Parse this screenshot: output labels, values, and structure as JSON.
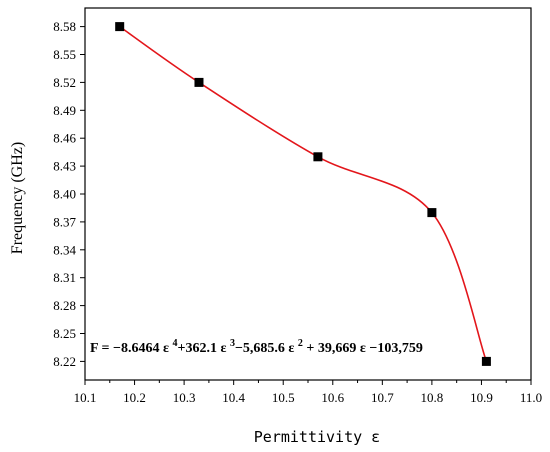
{
  "chart_data": {
    "type": "scatter",
    "xlabel": "Permittivity ε",
    "ylabel": "Frequency (GHz)",
    "xlim": [
      10.1,
      11.0
    ],
    "ylim": [
      8.2,
      8.6
    ],
    "xticks": [
      10.1,
      10.2,
      10.3,
      10.4,
      10.5,
      10.6,
      10.7,
      10.8,
      10.9,
      11.0
    ],
    "xtick_labels": [
      "10.1",
      "10.2",
      "10.3",
      "10.4",
      "10.5",
      "10.6",
      "10.7",
      "10.8",
      "10.9",
      "11.0"
    ],
    "yticks": [
      8.22,
      8.25,
      8.28,
      8.31,
      8.34,
      8.37,
      8.4,
      8.43,
      8.46,
      8.49,
      8.52,
      8.55,
      8.58
    ],
    "ytick_labels": [
      "8.22",
      "8.25",
      "8.28",
      "8.31",
      "8.34",
      "8.37",
      "8.40",
      "8.43",
      "8.46",
      "8.49",
      "8.52",
      "8.55",
      "8.58"
    ],
    "series": [
      {
        "marker": "square",
        "color": "#000000",
        "x": [
          10.17,
          10.33,
          10.57,
          10.8,
          10.91
        ],
        "y": [
          8.58,
          8.52,
          8.44,
          8.38,
          8.22
        ]
      }
    ],
    "fit": {
      "color": "#e3161b",
      "style": "smooth polynomial curve through points"
    },
    "equation": {
      "parts": [
        {
          "t": "F = −8.6464 ε "
        },
        {
          "t": "4",
          "sup": true
        },
        {
          "t": "+362.1 ε "
        },
        {
          "t": "3",
          "sup": true
        },
        {
          "t": "−5,685.6 ε "
        },
        {
          "t": "2",
          "sup": true
        },
        {
          "t": " + 39,669 ε −103,759"
        }
      ]
    },
    "grid": false
  }
}
